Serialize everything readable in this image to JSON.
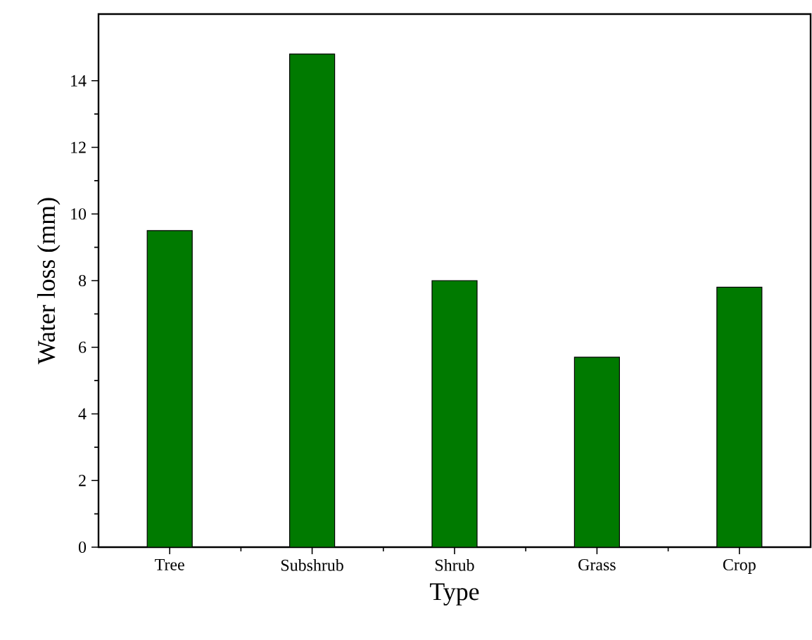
{
  "chart_data": {
    "type": "bar",
    "xlabel": "Type",
    "ylabel": "Water loss (mm)",
    "categories": [
      "Tree",
      "Subshrub",
      "Shrub",
      "Grass",
      "Crop"
    ],
    "values": [
      9.5,
      14.8,
      8.0,
      5.7,
      7.8
    ],
    "color": "#007a00",
    "ylim": [
      0,
      16
    ],
    "yticks": [
      0,
      2,
      4,
      6,
      8,
      10,
      12,
      14
    ]
  }
}
